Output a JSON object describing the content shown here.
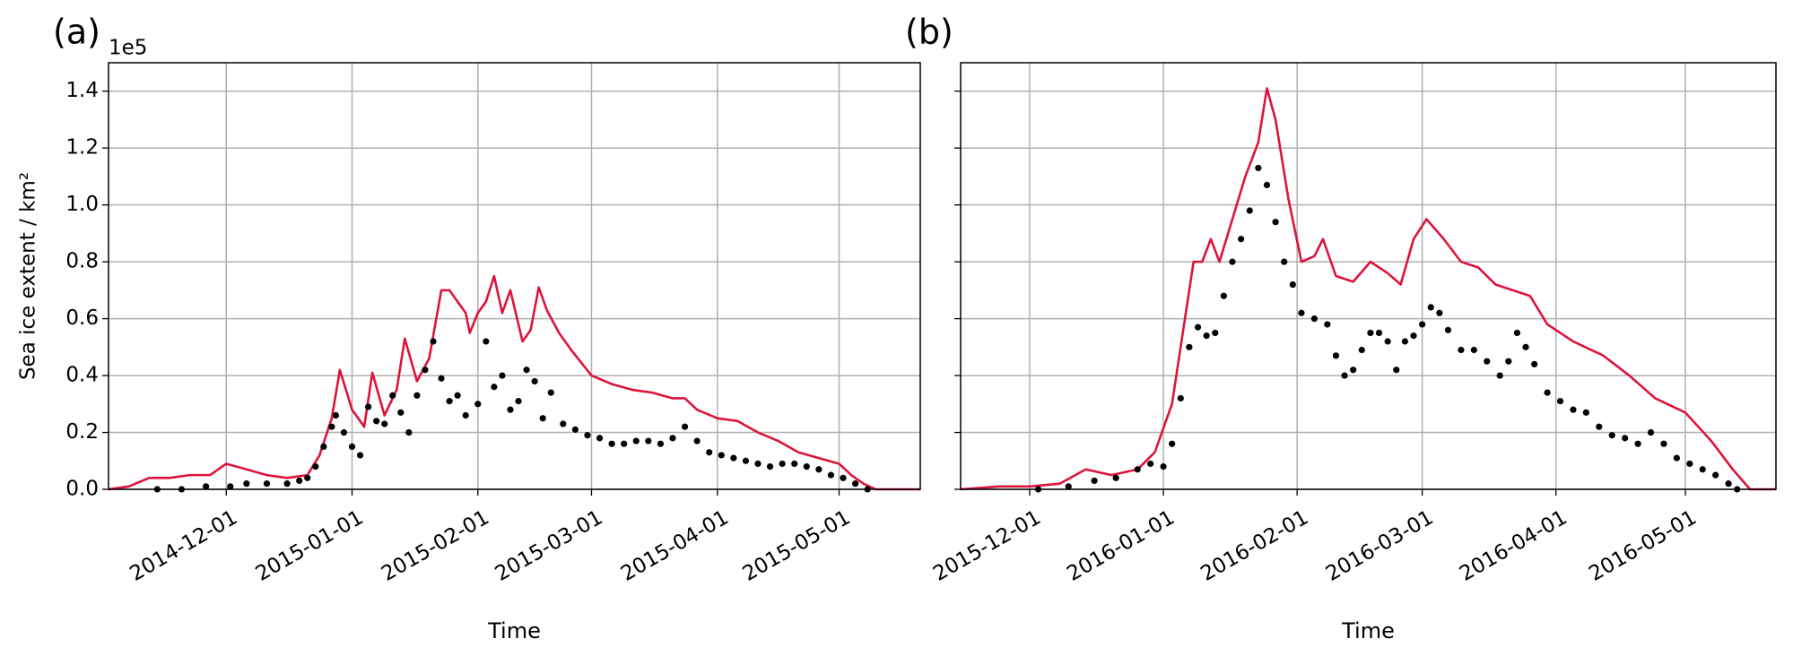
{
  "chart_data": [
    {
      "type": "line",
      "label": "(a)",
      "y_offset_label": "1e5",
      "ylabel": "Sea ice extent / km²",
      "xlabel": "Time",
      "grid": true,
      "xlim": [
        "2014-11-02",
        "2015-05-21"
      ],
      "xticks": [
        "2014-12-01",
        "2015-01-01",
        "2015-02-01",
        "2015-03-01",
        "2015-04-01",
        "2015-05-01"
      ],
      "ylim": [
        0,
        1.5
      ],
      "yticks": [
        {
          "value": 0,
          "label": "0.0"
        },
        0.2,
        0.4,
        0.6,
        0.8,
        {
          "value": 1,
          "label": "1.0"
        },
        1.2,
        1.4
      ],
      "series": [
        {
          "type": "line",
          "color": "#dc143c",
          "x": [
            "2014-11-02",
            "2014-11-07",
            "2014-11-12",
            "2014-11-17",
            "2014-11-22",
            "2014-11-27",
            "2014-12-01",
            "2014-12-06",
            "2014-12-11",
            "2014-12-16",
            "2014-12-21",
            "2014-12-24",
            "2014-12-27",
            "2014-12-29",
            "2015-01-01",
            "2015-01-04",
            "2015-01-06",
            "2015-01-09",
            "2015-01-12",
            "2015-01-14",
            "2015-01-17",
            "2015-01-20",
            "2015-01-23",
            "2015-01-25",
            "2015-01-27",
            "2015-01-29",
            "2015-01-30",
            "2015-02-01",
            "2015-02-03",
            "2015-02-05",
            "2015-02-07",
            "2015-02-09",
            "2015-02-12",
            "2015-02-14",
            "2015-02-16",
            "2015-02-18",
            "2015-02-21",
            "2015-02-24",
            "2015-03-01",
            "2015-03-06",
            "2015-03-11",
            "2015-03-16",
            "2015-03-21",
            "2015-03-24",
            "2015-03-27",
            "2015-04-01",
            "2015-04-06",
            "2015-04-11",
            "2015-04-16",
            "2015-04-21",
            "2015-04-26",
            "2015-05-01",
            "2015-05-04",
            "2015-05-07",
            "2015-05-10",
            "2015-05-21"
          ],
          "values": [
            0,
            0.01,
            0.04,
            0.04,
            0.05,
            0.05,
            0.09,
            0.07,
            0.05,
            0.04,
            0.05,
            0.12,
            0.25,
            0.42,
            0.28,
            0.22,
            0.41,
            0.26,
            0.35,
            0.53,
            0.38,
            0.46,
            0.7,
            0.7,
            0.66,
            0.62,
            0.55,
            0.62,
            0.66,
            0.75,
            0.62,
            0.7,
            0.52,
            0.56,
            0.71,
            0.63,
            0.55,
            0.49,
            0.4,
            0.37,
            0.35,
            0.34,
            0.32,
            0.32,
            0.28,
            0.25,
            0.24,
            0.2,
            0.17,
            0.13,
            0.11,
            0.09,
            0.05,
            0.02,
            0,
            0
          ]
        },
        {
          "type": "scatter",
          "color": "#000000",
          "x": [
            "2014-11-14",
            "2014-11-20",
            "2014-11-26",
            "2014-12-02",
            "2014-12-06",
            "2014-12-11",
            "2014-12-16",
            "2014-12-19",
            "2014-12-21",
            "2014-12-23",
            "2014-12-25",
            "2014-12-27",
            "2014-12-28",
            "2014-12-30",
            "2015-01-01",
            "2015-01-03",
            "2015-01-05",
            "2015-01-07",
            "2015-01-09",
            "2015-01-11",
            "2015-01-13",
            "2015-01-15",
            "2015-01-17",
            "2015-01-19",
            "2015-01-21",
            "2015-01-23",
            "2015-01-25",
            "2015-01-27",
            "2015-01-29",
            "2015-02-01",
            "2015-02-03",
            "2015-02-05",
            "2015-02-07",
            "2015-02-09",
            "2015-02-11",
            "2015-02-13",
            "2015-02-15",
            "2015-02-17",
            "2015-02-19",
            "2015-02-22",
            "2015-02-25",
            "2015-02-28",
            "2015-03-03",
            "2015-03-06",
            "2015-03-09",
            "2015-03-12",
            "2015-03-15",
            "2015-03-18",
            "2015-03-21",
            "2015-03-24",
            "2015-03-27",
            "2015-03-30",
            "2015-04-02",
            "2015-04-05",
            "2015-04-08",
            "2015-04-11",
            "2015-04-14",
            "2015-04-17",
            "2015-04-20",
            "2015-04-23",
            "2015-04-26",
            "2015-04-29",
            "2015-05-02",
            "2015-05-05",
            "2015-05-08"
          ],
          "values": [
            0,
            0,
            0.01,
            0.01,
            0.02,
            0.02,
            0.02,
            0.03,
            0.04,
            0.08,
            0.15,
            0.22,
            0.26,
            0.2,
            0.15,
            0.12,
            0.29,
            0.24,
            0.23,
            0.33,
            0.27,
            0.2,
            0.33,
            0.42,
            0.52,
            0.39,
            0.31,
            0.33,
            0.26,
            0.3,
            0.52,
            0.36,
            0.4,
            0.28,
            0.31,
            0.42,
            0.38,
            0.25,
            0.34,
            0.23,
            0.21,
            0.19,
            0.18,
            0.16,
            0.16,
            0.17,
            0.17,
            0.16,
            0.18,
            0.22,
            0.17,
            0.13,
            0.12,
            0.11,
            0.1,
            0.09,
            0.08,
            0.09,
            0.09,
            0.08,
            0.07,
            0.05,
            0.04,
            0.02,
            0
          ]
        }
      ]
    },
    {
      "type": "line",
      "label": "(b)",
      "xlabel": "Time",
      "grid": true,
      "xlim": [
        "2015-11-15",
        "2016-05-22"
      ],
      "xticks": [
        "2015-12-01",
        "2016-01-01",
        "2016-02-01",
        "2016-03-01",
        "2016-04-01",
        "2016-05-01"
      ],
      "ylim": [
        0,
        1.5
      ],
      "yticks": [
        0,
        0.2,
        0.4,
        0.6,
        0.8,
        1,
        1.2,
        1.4
      ],
      "series": [
        {
          "type": "line",
          "color": "#dc143c",
          "x": [
            "2015-11-15",
            "2015-11-24",
            "2015-12-01",
            "2015-12-08",
            "2015-12-14",
            "2015-12-20",
            "2015-12-26",
            "2015-12-30",
            "2016-01-03",
            "2016-01-06",
            "2016-01-08",
            "2016-01-10",
            "2016-01-12",
            "2016-01-14",
            "2016-01-17",
            "2016-01-20",
            "2016-01-23",
            "2016-01-25",
            "2016-01-27",
            "2016-01-30",
            "2016-02-02",
            "2016-02-05",
            "2016-02-07",
            "2016-02-10",
            "2016-02-14",
            "2016-02-18",
            "2016-02-22",
            "2016-02-25",
            "2016-02-28",
            "2016-03-02",
            "2016-03-06",
            "2016-03-10",
            "2016-03-14",
            "2016-03-18",
            "2016-03-22",
            "2016-03-26",
            "2016-03-30",
            "2016-04-05",
            "2016-04-12",
            "2016-04-18",
            "2016-04-24",
            "2016-05-01",
            "2016-05-07",
            "2016-05-12",
            "2016-05-16",
            "2016-05-22"
          ],
          "values": [
            0,
            0.01,
            0.01,
            0.02,
            0.07,
            0.05,
            0.07,
            0.13,
            0.3,
            0.6,
            0.8,
            0.8,
            0.88,
            0.8,
            0.95,
            1.1,
            1.22,
            1.41,
            1.3,
            1.02,
            0.8,
            0.82,
            0.88,
            0.75,
            0.73,
            0.8,
            0.76,
            0.72,
            0.88,
            0.95,
            0.88,
            0.8,
            0.78,
            0.72,
            0.7,
            0.68,
            0.58,
            0.52,
            0.47,
            0.4,
            0.32,
            0.27,
            0.17,
            0.07,
            0,
            0
          ]
        },
        {
          "type": "scatter",
          "color": "#000000",
          "x": [
            "2015-12-03",
            "2015-12-10",
            "2015-12-16",
            "2015-12-21",
            "2015-12-26",
            "2015-12-29",
            "2016-01-01",
            "2016-01-03",
            "2016-01-05",
            "2016-01-07",
            "2016-01-09",
            "2016-01-11",
            "2016-01-13",
            "2016-01-15",
            "2016-01-17",
            "2016-01-19",
            "2016-01-21",
            "2016-01-23",
            "2016-01-25",
            "2016-01-27",
            "2016-01-29",
            "2016-01-31",
            "2016-02-02",
            "2016-02-05",
            "2016-02-08",
            "2016-02-10",
            "2016-02-12",
            "2016-02-14",
            "2016-02-16",
            "2016-02-18",
            "2016-02-20",
            "2016-02-22",
            "2016-02-24",
            "2016-02-26",
            "2016-02-28",
            "2016-03-01",
            "2016-03-03",
            "2016-03-05",
            "2016-03-07",
            "2016-03-10",
            "2016-03-13",
            "2016-03-16",
            "2016-03-19",
            "2016-03-21",
            "2016-03-23",
            "2016-03-25",
            "2016-03-27",
            "2016-03-30",
            "2016-04-02",
            "2016-04-05",
            "2016-04-08",
            "2016-04-11",
            "2016-04-14",
            "2016-04-17",
            "2016-04-20",
            "2016-04-23",
            "2016-04-26",
            "2016-04-29",
            "2016-05-02",
            "2016-05-05",
            "2016-05-08",
            "2016-05-11",
            "2016-05-13"
          ],
          "values": [
            0,
            0.01,
            0.03,
            0.04,
            0.07,
            0.09,
            0.08,
            0.16,
            0.32,
            0.5,
            0.57,
            0.54,
            0.55,
            0.68,
            0.8,
            0.88,
            0.98,
            1.13,
            1.07,
            0.94,
            0.8,
            0.72,
            0.62,
            0.6,
            0.58,
            0.47,
            0.4,
            0.42,
            0.49,
            0.55,
            0.55,
            0.52,
            0.42,
            0.52,
            0.54,
            0.58,
            0.64,
            0.62,
            0.56,
            0.49,
            0.49,
            0.45,
            0.4,
            0.45,
            0.55,
            0.5,
            0.44,
            0.34,
            0.31,
            0.28,
            0.27,
            0.22,
            0.19,
            0.18,
            0.16,
            0.2,
            0.16,
            0.11,
            0.09,
            0.07,
            0.05,
            0.02,
            0
          ]
        }
      ]
    }
  ]
}
